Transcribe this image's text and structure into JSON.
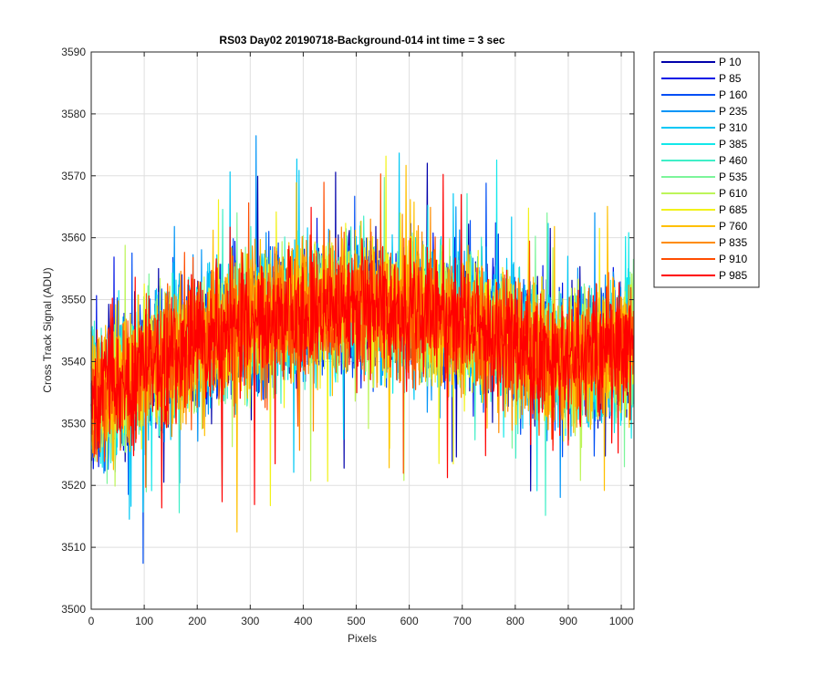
{
  "chart_data": {
    "type": "line",
    "title": "RS03 Day02 20190718-Background-014 int time = 3 sec",
    "xlabel": "Pixels",
    "ylabel": "Cross Track Signal (ADU)",
    "xlim": [
      0,
      1024
    ],
    "ylim": [
      3500,
      3590
    ],
    "xticks": [
      0,
      100,
      200,
      300,
      400,
      500,
      600,
      700,
      800,
      900,
      1000
    ],
    "yticks": [
      3500,
      3510,
      3520,
      3530,
      3540,
      3550,
      3560,
      3570,
      3580,
      3590
    ],
    "grid": true,
    "legend_position": "outside-top-right",
    "series_profile": {
      "description_x": [
        0,
        100,
        200,
        300,
        400,
        500,
        600,
        700,
        800,
        900,
        1024
      ],
      "mean": [
        3533,
        3539,
        3543,
        3546,
        3548,
        3549,
        3548,
        3546,
        3543,
        3540,
        3543
      ],
      "noise_amplitude_adu": 11,
      "point_count": 1024
    },
    "series": [
      {
        "name": "P 10",
        "color": "#0000aa"
      },
      {
        "name": "P 85",
        "color": "#0014e6"
      },
      {
        "name": "P 160",
        "color": "#004ff5"
      },
      {
        "name": "P 235",
        "color": "#0094f7"
      },
      {
        "name": "P 310",
        "color": "#00c8f5"
      },
      {
        "name": "P 385",
        "color": "#12e8ea"
      },
      {
        "name": "P 460",
        "color": "#3fefc7"
      },
      {
        "name": "P 535",
        "color": "#7cf59a"
      },
      {
        "name": "P 610",
        "color": "#bdf55a"
      },
      {
        "name": "P 685",
        "color": "#f2f21a"
      },
      {
        "name": "P 760",
        "color": "#ffc000"
      },
      {
        "name": "P 835",
        "color": "#ff8c00"
      },
      {
        "name": "P 910",
        "color": "#ff4d00"
      },
      {
        "name": "P 985",
        "color": "#ff0000"
      }
    ]
  }
}
